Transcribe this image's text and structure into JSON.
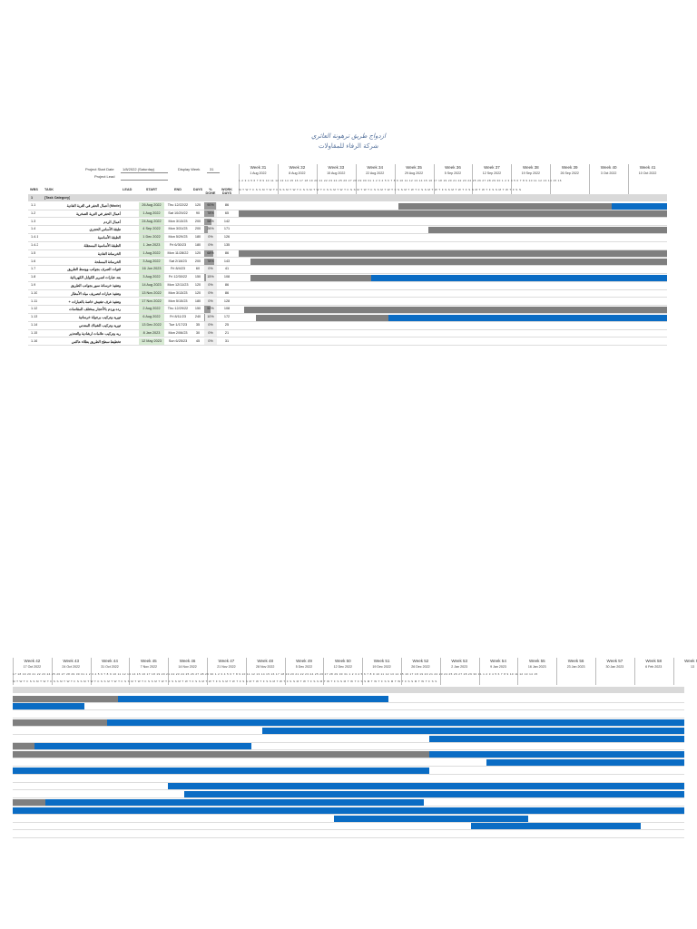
{
  "title_ar": "ازدواج طريق ترهونة العائري",
  "company_ar": "شركة الرفاء للمقاولات",
  "project": {
    "start_label": "Project Start Date",
    "start_value": "1/8/2022 (Saturday)",
    "display_label": "Display Week",
    "display_value": "31",
    "lead_label": "Project Lead"
  },
  "columns": [
    "WBS",
    "TASK",
    "LEAD",
    "START",
    "END",
    "DAYS",
    "% DONE",
    "WORK DAYS"
  ],
  "weeks_top": [
    {
      "n": "Week 31",
      "d": "1 Aug 2022"
    },
    {
      "n": "Week 32",
      "d": "8 Aug 2022"
    },
    {
      "n": "Week 33",
      "d": "15 Aug 2022"
    },
    {
      "n": "Week 34",
      "d": "22 Aug 2022"
    },
    {
      "n": "Week 35",
      "d": "29 Aug 2022"
    },
    {
      "n": "Week 36",
      "d": "5 Sep 2022"
    },
    {
      "n": "Week 37",
      "d": "12 Sep 2022"
    },
    {
      "n": "Week 38",
      "d": "19 Sep 2022"
    },
    {
      "n": "Week 39",
      "d": "26 Sep 2022"
    },
    {
      "n": "Week 40",
      "d": "3 Oct 2022"
    },
    {
      "n": "Week 41",
      "d": "10 Oct 2022"
    }
  ],
  "weeks_bottom": [
    {
      "n": "Week 42",
      "d": "17 Oct 2022"
    },
    {
      "n": "Week 43",
      "d": "24 Oct 2022"
    },
    {
      "n": "Week 44",
      "d": "31 Oct 2022"
    },
    {
      "n": "Week 45",
      "d": "7 Nov 2022"
    },
    {
      "n": "Week 46",
      "d": "14 Nov 2022"
    },
    {
      "n": "Week 47",
      "d": "21 Nov 2022"
    },
    {
      "n": "Week 48",
      "d": "28 Nov 2022"
    },
    {
      "n": "Week 49",
      "d": "5 Dec 2022"
    },
    {
      "n": "Week 50",
      "d": "12 Dec 2022"
    },
    {
      "n": "Week 51",
      "d": "19 Dec 2022"
    },
    {
      "n": "Week 52",
      "d": "26 Dec 2022"
    },
    {
      "n": "Week 53",
      "d": "2 Jan 2023"
    },
    {
      "n": "Week 54",
      "d": "9 Jan 2023"
    },
    {
      "n": "Week 55",
      "d": "16 Jan 2023"
    },
    {
      "n": "Week 56",
      "d": "23 Jan 2023"
    },
    {
      "n": "Week 57",
      "d": "30 Jan 2023"
    },
    {
      "n": "Week 58",
      "d": "6 Feb 2023"
    },
    {
      "n": "Week 59",
      "d": "13"
    }
  ],
  "day_letters": "M T W T F S S",
  "day_numbers_top": "1 2 3 4 5 6 7 8 9 10 11 12 13 14 15 16 17 18 19 20 21 22 23 24 25 26 27 28 29 30 31 1 2 3 4 5 6 7 8 9 10 11 12 13 14 15 16 17 18 19 20 21 22 23 24 25 26 27 28 29 30 1 2 3 4 5 6 7 8 9 10 11 12 13 14 15 16",
  "day_numbers_bottom": "17 18 19 20 21 22 23 24 25 26 27 28 29 30 31 1 2 3 4 5 6 7 8 9 10 11 12 13 14 15 16 17 18 19 20 21 22 23 24 25 26 27 28 29 30 1 2 3 4 5 6 7 8 9 10 11 12 13 14 15 16 17 18 19 20 21 22 23 24 25 26 27 28 29 30 31 1 2 3 4 5 6 7 8 9 10 11 12 13 14 15 16 17 18 19 20 21 22 23 24 25 26 27 28 29 30 31 1 2 3 4 5 6 7 8 9 10 11 12 13 14 15",
  "category": {
    "wbs": "1",
    "task": "[Task Category]"
  },
  "tasks": [
    {
      "wbs": "1.1",
      "task": "أعمال الحفر في التربة العادية (Mode)",
      "start": "26 Aug 2022",
      "end": "Thu 12/22/22",
      "days": "120",
      "done": "90%",
      "work": "86",
      "done_frac": 0.9,
      "bar_start": 0.372,
      "bar_end": 1.0,
      "bar2_start": 0.0,
      "bar2_end": 0.56,
      "bar2_split": 0.157
    },
    {
      "wbs": "1.2",
      "task": "أعمال الحفر في التربة الصخرية",
      "start": "1 Aug 2022",
      "end": "Sat 10/29/22",
      "days": "90",
      "done": "78%",
      "work": "65",
      "done_frac": 0.78,
      "bar_start": 0.0,
      "bar_end": 1.0,
      "bar2_start": 0.0,
      "bar2_end": 0.107,
      "bar2_split": 0.0
    },
    {
      "wbs": "1.3",
      "task": "أعمال الردم",
      "start": "24 Aug 2022",
      "end": "Mon 3/13/23",
      "days": "200",
      "done": "58%",
      "work": "142",
      "done_frac": 0.58,
      "bar_start": 0.0,
      "bar_end": 0.0,
      "bar2_start": 0.0,
      "bar2_end": 0.0,
      "bar2_split": 0.0
    },
    {
      "wbs": "1.4",
      "task": "طبقة الأساس الحجري",
      "start": "4 Sep 2022",
      "end": "Mon 3/31/23",
      "days": "200",
      "done": "26%",
      "work": "171",
      "done_frac": 0.26,
      "bar_start": 0.443,
      "bar_end": 1.0,
      "bar2_start": 0.0,
      "bar2_end": 1.0,
      "bar2_split": 0.14
    },
    {
      "wbs": "1.4.1",
      "task": "الطبقة الأساسية",
      "start": "1 Dec 2022",
      "end": "Mon 5/29/23",
      "days": "180",
      "done": "0%",
      "work": "126",
      "done_frac": 0,
      "bar_start": 0.0,
      "bar_end": 0.0,
      "bar2_start": 0.372,
      "bar2_end": 1.0,
      "bar2_split": 0.0
    },
    {
      "wbs": "1.4.2",
      "task": "الطبقة الأساسية المستقلة",
      "start": "1 Jan 2023",
      "end": "Fri 6/30/23",
      "days": "180",
      "done": "0%",
      "work": "135",
      "done_frac": 0,
      "bar_start": 0.0,
      "bar_end": 0.0,
      "bar2_start": 0.62,
      "bar2_end": 1.0,
      "bar2_split": 0.0
    },
    {
      "wbs": "1.5",
      "task": "الخرسانة العادية",
      "start": "1 Aug 2022",
      "end": "Mon 11/28/22",
      "days": "120",
      "done": "68%",
      "work": "86",
      "done_frac": 0.68,
      "bar_start": 0.0,
      "bar_end": 1.0,
      "bar2_start": 0.0,
      "bar2_end": 0.355,
      "bar2_split": 0.033
    },
    {
      "wbs": "1.6",
      "task": "الخرسانة المسلحة",
      "start": "3 Aug 2022",
      "end": "Sat 2/18/23",
      "days": "200",
      "done": "78%",
      "work": "143",
      "done_frac": 0.78,
      "bar_start": 0.027,
      "bar_end": 1.0,
      "bar2_start": 0.0,
      "bar2_end": 1.0,
      "bar2_split": 0.62
    },
    {
      "wbs": "1.7",
      "task": "قنوات الصرف بجوانب ووسط الطريق",
      "start": "16 Jun 2023",
      "end": "Fri 8/4/23",
      "days": "60",
      "done": "0%",
      "work": "41",
      "done_frac": 0,
      "bar_start": 0.0,
      "bar_end": 0.0,
      "bar2_start": 0.705,
      "bar2_end": 1.0,
      "bar2_split": 0.0
    },
    {
      "wbs": "1.8",
      "task": "بعد عبارات لتمرير الكوابل الكهربائية",
      "start": "3 Aug 2022",
      "end": "Fri 12/30/22",
      "days": "150",
      "done": "15%",
      "work": "108",
      "done_frac": 0.15,
      "bar_start": 0.027,
      "bar_end": 1.0,
      "bar2_start": 0.0,
      "bar2_end": 0.62,
      "bar2_split": 0.0,
      "split_top": 0.31
    },
    {
      "wbs": "1.9",
      "task": "وتنفيذ خرسانة سور بجوانب الطريق",
      "start": "14 Aug 2023",
      "end": "Mon 12/11/23",
      "days": "120",
      "done": "0%",
      "work": "86",
      "done_frac": 0,
      "bar_start": 0.0,
      "bar_end": 0.0,
      "bar2_start": 0.0,
      "bar2_end": 0.0,
      "bar2_split": 0.0
    },
    {
      "wbs": "1.10",
      "task": "وتنفيذ عبارات لتصريف مياه الأمطار",
      "start": "13 Nov 2022",
      "end": "Mon 3/13/23",
      "days": "120",
      "done": "0%",
      "work": "86",
      "done_frac": 0,
      "bar_start": 0.0,
      "bar_end": 0.0,
      "bar2_start": 0.231,
      "bar2_end": 1.0,
      "bar2_split": 0.0
    },
    {
      "wbs": "1.11",
      "task": "+ وتنفيذ غرف تفتيش خاصة بالعبارات",
      "start": "17 Nov 2022",
      "end": "Mon 5/15/23",
      "days": "180",
      "done": "0%",
      "work": "128",
      "done_frac": 0,
      "bar_start": 0.0,
      "bar_end": 0.0,
      "bar2_start": 0.255,
      "bar2_end": 1.0,
      "bar2_split": 0.0
    },
    {
      "wbs": "1.12",
      "task": "رده وردم بالأحجار بمختلف المقاسات",
      "start": "2 Aug 2022",
      "end": "Thu 12/29/22",
      "days": "150",
      "done": "50%",
      "work": "108",
      "done_frac": 0.5,
      "bar_start": 0.013,
      "bar_end": 1.0,
      "bar2_start": 0.0,
      "bar2_end": 0.612,
      "bar2_split": 0.049
    },
    {
      "wbs": "1.13",
      "task": "توريد وتركيب برجولة خرسانية",
      "start": "6 Aug 2022",
      "end": "Fri 8/11/23",
      "days": "240",
      "done": "10%",
      "work": "172",
      "done_frac": 0.1,
      "bar_start": 0.04,
      "bar_end": 1.0,
      "bar2_start": 0.0,
      "bar2_end": 1.0,
      "bar2_split": 0.0,
      "split_top": 0.35
    },
    {
      "wbs": "1.14",
      "task": "توريد وتركيب الشباك المعدني",
      "start": "13 Dec 2022",
      "end": "Tue 1/17/23",
      "days": "35",
      "done": "0%",
      "work": "25",
      "done_frac": 0,
      "bar_start": 0.0,
      "bar_end": 0.0,
      "bar2_start": 0.478,
      "bar2_end": 0.767,
      "bar2_split": 0.0
    },
    {
      "wbs": "1.15",
      "task": "ربه وتركيب علامات ارشادية والتحذير",
      "start": "8 Jan 2023",
      "end": "Mon 2/06/23",
      "days": "30",
      "done": "0%",
      "work": "21",
      "done_frac": 0,
      "bar_start": 0.0,
      "bar_end": 0.0,
      "bar2_start": 0.683,
      "bar2_end": 0.935,
      "bar2_split": 0.0
    },
    {
      "wbs": "1.16",
      "task": "تخطيط سطح الطريق بطلاء عاكس",
      "start": "12 May 2023",
      "end": "Sun 6/25/23",
      "days": "45",
      "done": "0%",
      "work": "31",
      "done_frac": 0,
      "bar_start": 0.0,
      "bar_end": 0.0,
      "bar2_start": 0.0,
      "bar2_end": 0.0,
      "bar2_split": 0.0
    }
  ],
  "colors": {
    "done": "#7f7f7f",
    "remaining": "#0a6cc4",
    "category": "#d9d9d9",
    "start_cell": "#d7ead3",
    "title": "#56729c"
  }
}
